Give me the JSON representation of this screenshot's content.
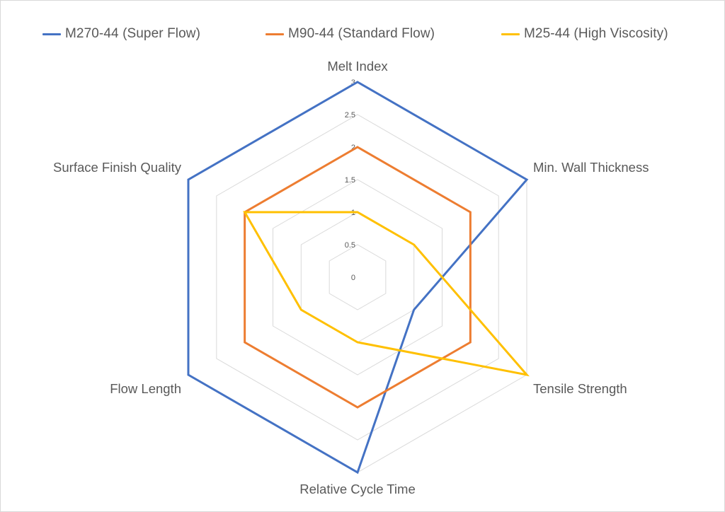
{
  "chart_data": {
    "type": "radar",
    "title": "",
    "categories": [
      "Melt Index",
      "Min. Wall Thickness",
      "Tensile Strength",
      "Relative Cycle Time",
      "Flow Length",
      "Surface Finish Quality"
    ],
    "series": [
      {
        "name": "M270-44 (Super Flow)",
        "color": "#4472C4",
        "values": [
          3,
          3,
          1,
          3,
          3,
          3
        ]
      },
      {
        "name": "M90-44 (Standard Flow)",
        "color": "#ED7D31",
        "values": [
          2,
          2,
          2,
          2,
          2,
          2
        ]
      },
      {
        "name": "M25-44 (High Viscosity)",
        "color": "#FFC000",
        "values": [
          1,
          1,
          3,
          1,
          1,
          2
        ]
      }
    ],
    "radial_axis": {
      "min": 0,
      "max": 3,
      "step": 0.5,
      "tick_labels": [
        "0",
        "0.5",
        "1",
        "1.5",
        "2",
        "2.5",
        "3"
      ]
    },
    "grid": true,
    "gridline_color": "#D9D9D9",
    "legend_position": "top"
  },
  "legend": {
    "items": [
      {
        "label": "M270-44 (Super Flow)",
        "color": "#4472C4"
      },
      {
        "label": "M90-44 (Standard Flow)",
        "color": "#ED7D31"
      },
      {
        "label": "M25-44 (High Viscosity)",
        "color": "#FFC000"
      }
    ]
  }
}
